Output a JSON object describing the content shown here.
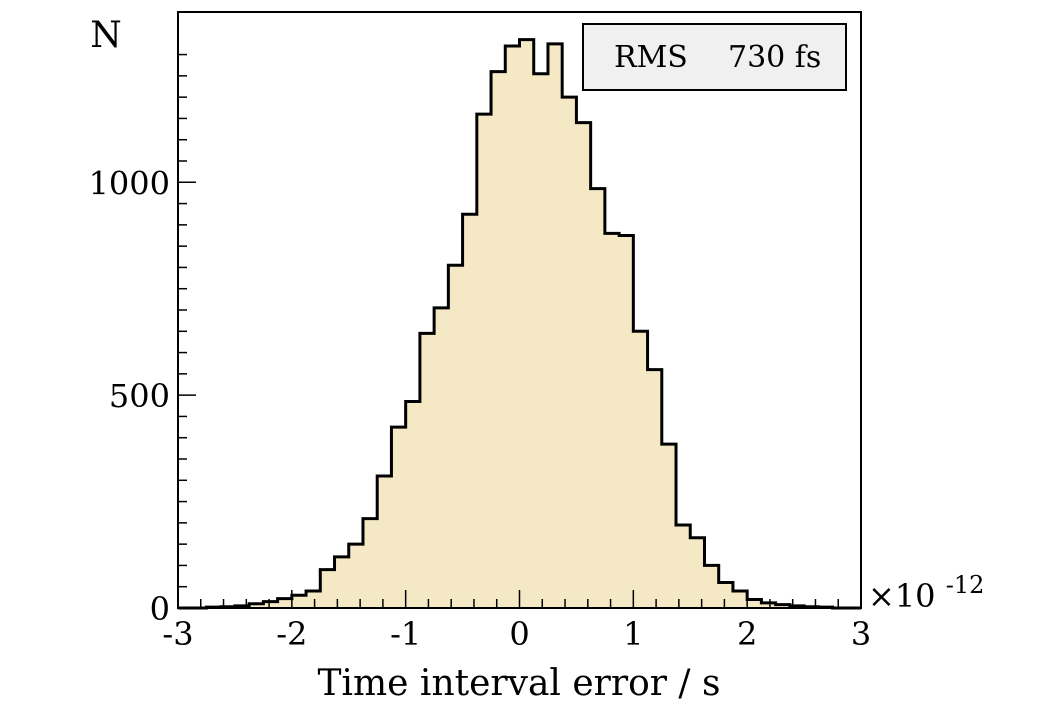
{
  "chart_data": {
    "type": "bar",
    "histogram": true,
    "ylabel": "N",
    "xlabel": "Time interval error / s",
    "x_multiplier_base": "×10",
    "x_multiplier_exp": "-12",
    "xlim": [
      -3,
      3
    ],
    "ylim": [
      0,
      1400
    ],
    "bin_width": 0.125,
    "bin_start": -3.0,
    "xticks": [
      -3,
      -2,
      -1,
      0,
      1,
      2,
      3
    ],
    "xtick_labels": [
      "-3",
      "-2",
      "-1",
      "0",
      "1",
      "2",
      "3"
    ],
    "yticks": [
      0,
      500,
      1000
    ],
    "ytick_labels": [
      "0",
      "500",
      "1000"
    ],
    "values": [
      0,
      0,
      2,
      3,
      5,
      10,
      15,
      22,
      30,
      40,
      90,
      120,
      150,
      210,
      310,
      425,
      485,
      645,
      705,
      805,
      925,
      1160,
      1260,
      1320,
      1335,
      1255,
      1325,
      1200,
      1140,
      985,
      880,
      875,
      650,
      560,
      385,
      195,
      165,
      100,
      60,
      40,
      20,
      12,
      8,
      5,
      3,
      2,
      0,
      0
    ],
    "fill_color": "#f5e8c4",
    "line_color": "#000000",
    "grid": false,
    "stats_box": {
      "label": "RMS",
      "value": "730 fs"
    }
  }
}
